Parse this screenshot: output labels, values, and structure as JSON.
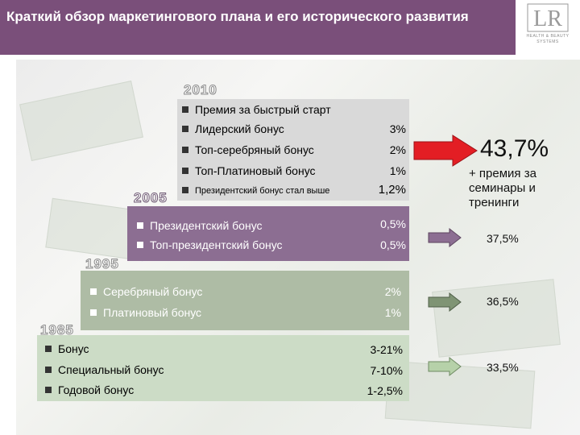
{
  "header": {
    "title": "Краткий обзор маркетингового плана и его исторического развития"
  },
  "logo": {
    "mark_text": "LR",
    "tagline": "HEALTH & BEAUTY SYSTEMS"
  },
  "periods": [
    {
      "year": "2010",
      "rows": [
        {
          "label": "Премия за быстрый старт",
          "value": ""
        },
        {
          "label": "Лидерский бонус",
          "value": "3%"
        },
        {
          "label": "Топ-серебряный бонус",
          "value": "2%"
        },
        {
          "label": "Топ-Платиновый бонус",
          "value": "1%"
        },
        {
          "label": "Президентский бонус стал выше",
          "value": "1,2%"
        }
      ],
      "total": "43,7%",
      "extra": "+ премия за семинары и тренинги"
    },
    {
      "year": "2005",
      "rows": [
        {
          "label": "Президентский бонус",
          "value": "0,5%"
        },
        {
          "label": "Топ-президентский бонус",
          "value": "0,5%"
        }
      ],
      "total": "37,5%"
    },
    {
      "year": "1995",
      "rows": [
        {
          "label": "Серебряный бонус",
          "value": "2%"
        },
        {
          "label": "Платиновый бонус",
          "value": "1%"
        }
      ],
      "total": "36,5%"
    },
    {
      "year": "1985",
      "rows": [
        {
          "label": "Бонус",
          "value": "3-21%"
        },
        {
          "label": "Специальный бонус",
          "value": "7-10%"
        },
        {
          "label": "Годовой бонус",
          "value": "1-2,5%"
        }
      ],
      "total": "33,5%"
    }
  ],
  "colors": {
    "header": "#7a4f7a",
    "arrow_2010": "#e31e24",
    "arrow_2005": "#8c6e92",
    "arrow_1995": "#7f9474",
    "arrow_1985": "#b6d1a9"
  }
}
